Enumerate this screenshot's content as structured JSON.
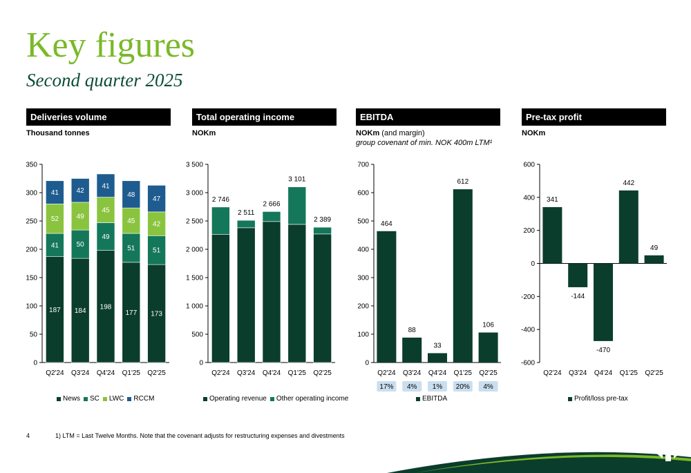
{
  "header": {
    "title": "Key figures",
    "subtitle": "Second quarter 2025"
  },
  "panels": [
    {
      "head": "Deliveries volume",
      "unit_bold": "Thousand tonnes",
      "unit_rest": "",
      "unit_note": ""
    },
    {
      "head": "Total operating income",
      "unit_bold": "NOKm",
      "unit_rest": "",
      "unit_note": ""
    },
    {
      "head": "EBITDA",
      "unit_bold": "NOKm",
      "unit_rest": " (and margin)",
      "unit_note": "group covenant of min. NOK 400m LTM¹"
    },
    {
      "head": "Pre-tax profit",
      "unit_bold": "NOKm",
      "unit_rest": "",
      "unit_note": ""
    }
  ],
  "footer": {
    "page": "4",
    "footnote": "1) LTM = Last Twelve Months. Note that the covenant adjusts for restructuring expenses and divestments"
  },
  "colors": {
    "news": "#0b3d2c",
    "sc": "#15775a",
    "lwc": "#8ac43f",
    "rccm": "#1e5c8f",
    "title": "#7ab929",
    "margin_box": "#c9dff0"
  },
  "chart_data": [
    {
      "type": "bar",
      "stacked": true,
      "categories": [
        "Q2'24",
        "Q3'24",
        "Q4'24",
        "Q1'25",
        "Q2'25"
      ],
      "ylim": [
        0,
        350
      ],
      "yticks": [
        0,
        50,
        100,
        150,
        200,
        250,
        300,
        350
      ],
      "ytick_labels": [
        "0",
        "50",
        "100",
        "150",
        "200",
        "250",
        "300",
        "350"
      ],
      "series": [
        {
          "name": "News",
          "color": "#0b3d2c",
          "values": [
            187,
            184,
            198,
            177,
            173
          ]
        },
        {
          "name": "SC",
          "color": "#15775a",
          "values": [
            41,
            50,
            49,
            51,
            51
          ]
        },
        {
          "name": "LWC",
          "color": "#8ac43f",
          "values": [
            52,
            49,
            45,
            45,
            42
          ]
        },
        {
          "name": "RCCM",
          "color": "#1e5c8f",
          "values": [
            41,
            42,
            41,
            48,
            47
          ]
        }
      ],
      "legend": "bottom"
    },
    {
      "type": "bar",
      "stacked": true,
      "categories": [
        "Q2'24",
        "Q3'24",
        "Q4'24",
        "Q1'25",
        "Q2'25"
      ],
      "ylim": [
        0,
        3500
      ],
      "yticks": [
        0,
        500,
        1000,
        1500,
        2000,
        2500,
        3000,
        3500
      ],
      "ytick_labels": [
        "0",
        "500",
        "1 000",
        "1 500",
        "2 000",
        "2 500",
        "3 000",
        "3 500"
      ],
      "series": [
        {
          "name": "Operating revenue",
          "color": "#0b3d2c",
          "values": [
            2260,
            2380,
            2490,
            2440,
            2270
          ]
        },
        {
          "name": "Other operating income",
          "color": "#15775a",
          "values": [
            486,
            131,
            176,
            661,
            119
          ]
        }
      ],
      "totals": [
        2746,
        2511,
        2666,
        3101,
        2389
      ],
      "total_labels": [
        "2 746",
        "2 511",
        "2 666",
        "3 101",
        "2 389"
      ],
      "legend": "bottom"
    },
    {
      "type": "bar",
      "categories": [
        "Q2'24",
        "Q3'24",
        "Q4'24",
        "Q1'25",
        "Q2'25"
      ],
      "ylim": [
        0,
        700
      ],
      "yticks": [
        0,
        100,
        200,
        300,
        400,
        500,
        600,
        700
      ],
      "ytick_labels": [
        "0",
        "100",
        "200",
        "300",
        "400",
        "500",
        "600",
        "700"
      ],
      "series": [
        {
          "name": "EBITDA",
          "color": "#0b3d2c",
          "values": [
            464,
            88,
            33,
            612,
            106
          ]
        }
      ],
      "margins": [
        "17%",
        "4%",
        "1%",
        "20%",
        "4%"
      ],
      "legend": "bottom"
    },
    {
      "type": "bar",
      "categories": [
        "Q2'24",
        "Q3'24",
        "Q4'24",
        "Q1'25",
        "Q2'25"
      ],
      "ylim": [
        -600,
        600
      ],
      "yticks": [
        -600,
        -400,
        -200,
        0,
        200,
        400,
        600
      ],
      "ytick_labels": [
        "-600",
        "-400",
        "-200",
        "0",
        "200",
        "400",
        "600"
      ],
      "series": [
        {
          "name": "Profit/loss pre-tax",
          "color": "#0b3d2c",
          "values": [
            341,
            -144,
            -470,
            442,
            49
          ]
        }
      ],
      "legend": "bottom"
    }
  ]
}
